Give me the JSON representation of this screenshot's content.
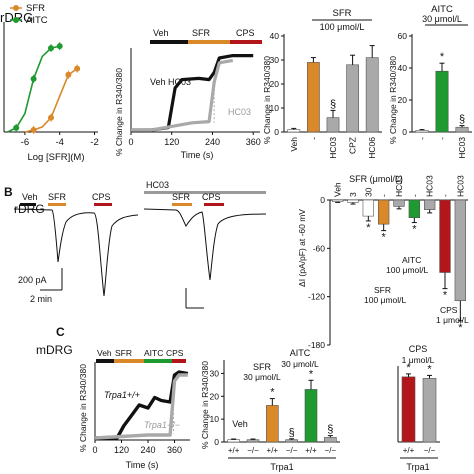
{
  "colors": {
    "orange": "#d9892a",
    "green": "#1f9a31",
    "red": "#b3161a",
    "grey": "#a9a9a9",
    "darkgrey": "#7a7a7a",
    "black": "#111111",
    "bar_white": "#ffffff"
  },
  "panelA": {
    "letter_row_title": "rDRG",
    "dose": {
      "legend": [
        {
          "label": "SFR",
          "color_key": "orange"
        },
        {
          "label": "AITC",
          "color_key": "green"
        }
      ],
      "xlabel": "Log [SFR](M)",
      "xticks": [
        "-6",
        "-4",
        "-2"
      ]
    },
    "trace": {
      "protocol": [
        "Veh",
        "SFR",
        "CPS"
      ],
      "label_veh": "Veh HC03",
      "label_hc03": "HC03",
      "ylabel": "% Change in R340/380",
      "xlabel": "Time (s)",
      "xticks": [
        "0",
        "120",
        "240",
        "360"
      ]
    },
    "bars_sfr": {
      "header": "SFR",
      "conc": "100 μmol/L",
      "ylabel": "% Change in R340/380",
      "yticks": [
        "0",
        "10",
        "20",
        "30",
        "40"
      ],
      "categories": [
        "Veh",
        "-",
        "HC03",
        "CPZ",
        "HC06"
      ],
      "sig": [
        "",
        "",
        "§",
        "",
        ""
      ]
    },
    "bars_aitc": {
      "header": "AITC",
      "conc": "30 μmol/L",
      "ylabel": "% Change in R340/380",
      "yticks": [
        "0",
        "20",
        "40",
        "60"
      ],
      "categories": [
        "-",
        "-",
        "HC03"
      ],
      "sig": [
        "",
        "*",
        "§"
      ],
      "star": "*"
    }
  },
  "panelB": {
    "letter": "B",
    "title": "rDRG",
    "trace1": {
      "veh": "Veh",
      "sfr": "SFR",
      "cps": "CPS"
    },
    "trace2": {
      "hc03": "HC03",
      "sfr": "SFR",
      "cps": "CPS"
    },
    "scalebar": {
      "current": "200 pA",
      "time": "2 min"
    },
    "iv": {
      "header": "SFR (μmol/L)",
      "cats": [
        "Veh",
        "3",
        "30",
        "-",
        "HC03",
        "-",
        "HC03",
        "-",
        "HC03"
      ],
      "ylabel": "ΔI (pA/pF) at -60 mV",
      "yticks": [
        "0",
        "-60",
        "-120",
        "-180"
      ],
      "callout_sfr": "SFR",
      "callout_sfr_conc": "100 μmol/L",
      "callout_aitc": "AITC",
      "callout_aitc_conc": "100 μmol/L",
      "callout_cps": "CPS",
      "callout_cps_conc": "1 μmol/L",
      "star": "*",
      "section": "§"
    }
  },
  "panelC": {
    "letter": "C",
    "title": "mDRG",
    "trace": {
      "protocol": [
        "Veh",
        "SFR",
        "AITC",
        "CPS"
      ],
      "label_wt": "Trpa1+/+",
      "label_ko": "Trpa1−/−",
      "ylabel": "% Change in R340/380",
      "xlabel": "Time (s)",
      "xticks": [
        "0",
        "120",
        "240",
        "360"
      ]
    },
    "bars": {
      "ylabel": "% Change in R340/380",
      "yticks": [
        "0",
        "10",
        "20",
        "30"
      ],
      "group_labels": [
        "Veh",
        "SFR",
        "AITC"
      ],
      "sfr_conc": "30 μmol/L",
      "aitc_conc": "30 μmol/L",
      "genotypes": [
        "+/+",
        "−/−",
        "+/+",
        "−/−",
        "+/+",
        "−/−"
      ],
      "axis_label": "Trpa1",
      "star": "*",
      "section": "§"
    },
    "cps_bars": {
      "header": "CPS",
      "conc": "1 μmol/L",
      "genotypes": [
        "+/+",
        "−/−"
      ],
      "axis_label": "Trpa1",
      "star": "*"
    }
  },
  "chart_data": [
    {
      "type": "line",
      "title": "",
      "xlabel": "Log [SFR](M)",
      "ylabel": "",
      "series": [
        {
          "name": "SFR",
          "x": [
            -6,
            -5.5,
            -5,
            -4.5,
            -4,
            -3.5,
            -3
          ],
          "values": [
            0,
            2,
            5,
            14,
            35,
            56,
            62
          ]
        },
        {
          "name": "AITC",
          "x": [
            -7,
            -6.5,
            -6,
            -5.5,
            -5,
            -4.5,
            -4
          ],
          "values": [
            0,
            4,
            18,
            52,
            74,
            82,
            84
          ]
        }
      ]
    },
    {
      "type": "line",
      "title": "",
      "xlabel": "Time (s)",
      "ylabel": "% Change in R340/380",
      "series": [
        {
          "name": "Veh HC03",
          "x": [
            0,
            60,
            110,
            130,
            150,
            200,
            230,
            245,
            260,
            300,
            360
          ],
          "values": [
            0,
            0,
            2,
            35,
            42,
            43,
            42,
            48,
            60,
            62,
            62
          ]
        },
        {
          "name": "HC03",
          "x": [
            0,
            60,
            120,
            180,
            230,
            245,
            260,
            300
          ],
          "values": [
            0,
            0,
            3,
            6,
            7,
            40,
            56,
            58
          ]
        }
      ]
    },
    {
      "type": "bar",
      "title": "SFR 100 μmol/L",
      "categories": [
        "Veh",
        "-",
        "HC03",
        "CPZ",
        "HC06"
      ],
      "values": [
        1,
        29,
        6,
        28,
        31
      ],
      "errors": [
        0.5,
        2,
        3,
        4,
        5
      ],
      "ylabel": "% Change in R340/380",
      "ylim": [
        0,
        40
      ]
    },
    {
      "type": "bar",
      "title": "AITC 30 μmol/L",
      "categories": [
        "-",
        "-",
        "HC03"
      ],
      "values": [
        1,
        38,
        3
      ],
      "errors": [
        0.5,
        5,
        1
      ],
      "ylabel": "% Change in R340/380",
      "ylim": [
        0,
        60
      ]
    },
    {
      "type": "bar",
      "title": "SFR (μmol/L)",
      "categories": [
        "Veh",
        "3",
        "30",
        "-",
        "HC03",
        "-",
        "HC03",
        "-",
        "HC03"
      ],
      "values": [
        -2,
        -3,
        -20,
        -30,
        -8,
        -22,
        -12,
        -90,
        -125
      ],
      "errors": [
        1,
        2,
        6,
        8,
        3,
        6,
        4,
        20,
        25
      ],
      "ylabel": "ΔI (pA/pF) at -60 mV",
      "ylim": [
        -180,
        0
      ]
    },
    {
      "type": "line",
      "title": "",
      "xlabel": "Time (s)",
      "ylabel": "% Change in R340/380",
      "series": [
        {
          "name": "Trpa1+/+",
          "x": [
            0,
            100,
            130,
            170,
            200,
            240,
            270,
            300,
            340,
            360,
            380,
            420
          ],
          "values": [
            0,
            0,
            8,
            16,
            22,
            20,
            27,
            25,
            24,
            42,
            44,
            43
          ]
        },
        {
          "name": "Trpa1−/−",
          "x": [
            0,
            120,
            240,
            340,
            360,
            380,
            420
          ],
          "values": [
            0,
            1,
            2,
            2,
            38,
            42,
            42
          ]
        }
      ]
    },
    {
      "type": "bar",
      "title": "",
      "categories": [
        "Veh +/+",
        "Veh −/−",
        "SFR +/+",
        "SFR −/−",
        "AITC +/+",
        "AITC −/−"
      ],
      "values": [
        1,
        1,
        16,
        1,
        23,
        2
      ],
      "errors": [
        0.3,
        0.3,
        3,
        0.4,
        4,
        0.8
      ],
      "ylabel": "% Change in R340/380",
      "ylim": [
        0,
        35
      ]
    },
    {
      "type": "bar",
      "title": "CPS 1 μmol/L",
      "categories": [
        "+/+",
        "−/−"
      ],
      "values": [
        44,
        43
      ],
      "errors": [
        2,
        2
      ],
      "ylabel": "",
      "ylim": [
        0,
        50
      ]
    }
  ]
}
